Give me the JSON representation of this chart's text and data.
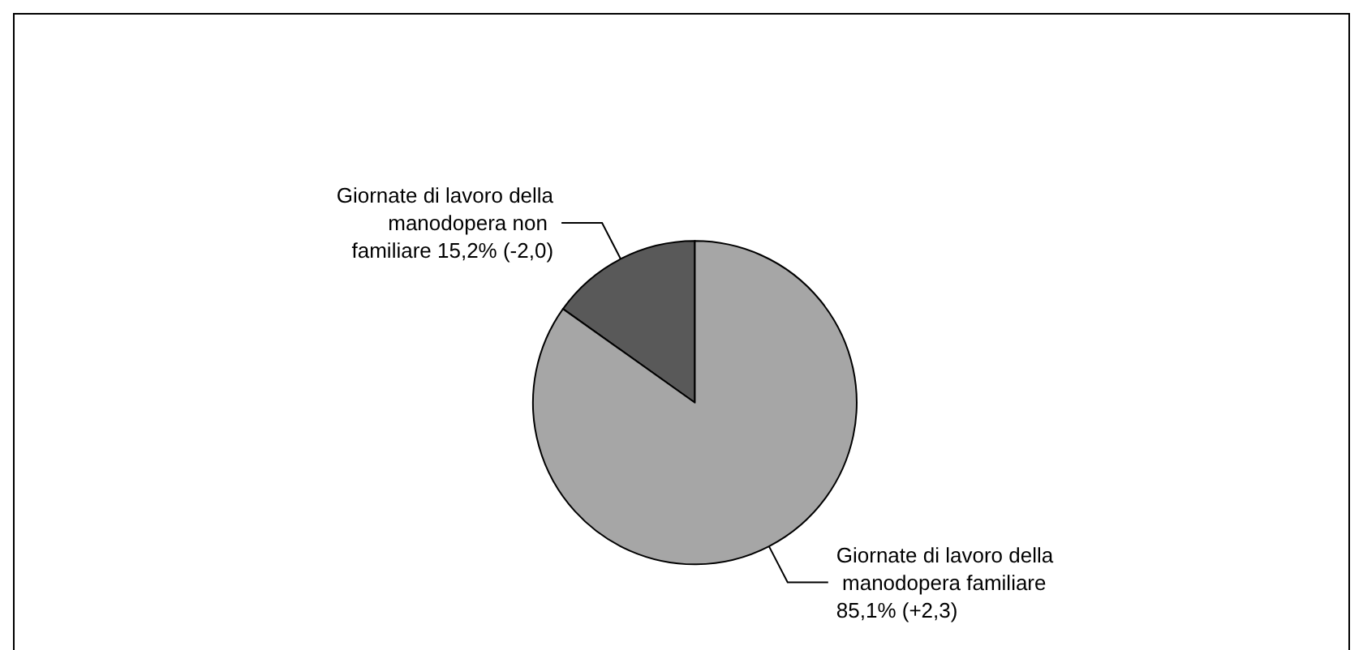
{
  "chart_data": {
    "type": "pie",
    "categories": [
      "Giornate di lavoro della manodopera non familiare",
      "Giornate di lavoro della manodopera familiare"
    ],
    "values": [
      15.2,
      85.1
    ],
    "value_labels": [
      "15,2% (-2,0)",
      "85,1% (+2,3)"
    ],
    "colors": [
      "#595959",
      "#a6a6a6"
    ]
  }
}
